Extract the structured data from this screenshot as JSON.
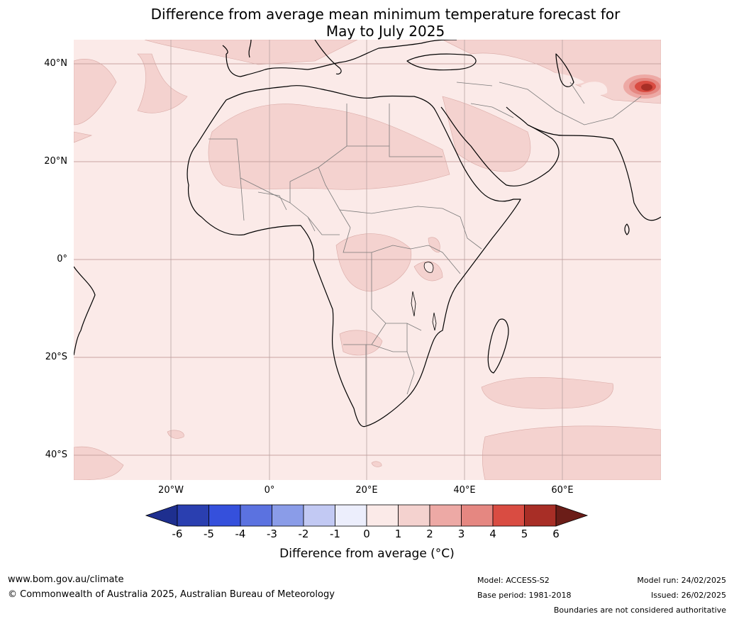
{
  "title_line1": "Difference from average mean minimum temperature forecast for",
  "title_line2": "May to July 2025",
  "lat_labels": [
    "40°N",
    "20°N",
    "0°",
    "20°S",
    "40°S"
  ],
  "lon_labels": [
    "20°W",
    "0°",
    "20°E",
    "40°E",
    "60°E"
  ],
  "colorbar": {
    "label": "Difference from average (°C)",
    "ticks": [
      "-6",
      "-5",
      "-4",
      "-3",
      "-2",
      "-1",
      "0",
      "1",
      "2",
      "3",
      "4",
      "5",
      "6"
    ],
    "colors": [
      "#1e2f8f",
      "#2a3fb0",
      "#3550dc",
      "#5b72e0",
      "#8a9ce8",
      "#c2c9f3",
      "#eceefc",
      "#fbeae8",
      "#f4d2cf",
      "#eda9a5",
      "#e58781",
      "#d94c42",
      "#a82e26",
      "#6b1d18"
    ]
  },
  "footer": {
    "website": "www.bom.gov.au/climate",
    "copyright": "© Commonwealth of Australia 2025, Australian Bureau of Meteorology",
    "model": "Model: ACCESS-S2",
    "base_period": "Base period: 1981-2018",
    "model_run": "Model run: 24/02/2025",
    "issued": "Issued: 26/02/2025",
    "disclaimer": "Boundaries are not considered authoritative"
  }
}
